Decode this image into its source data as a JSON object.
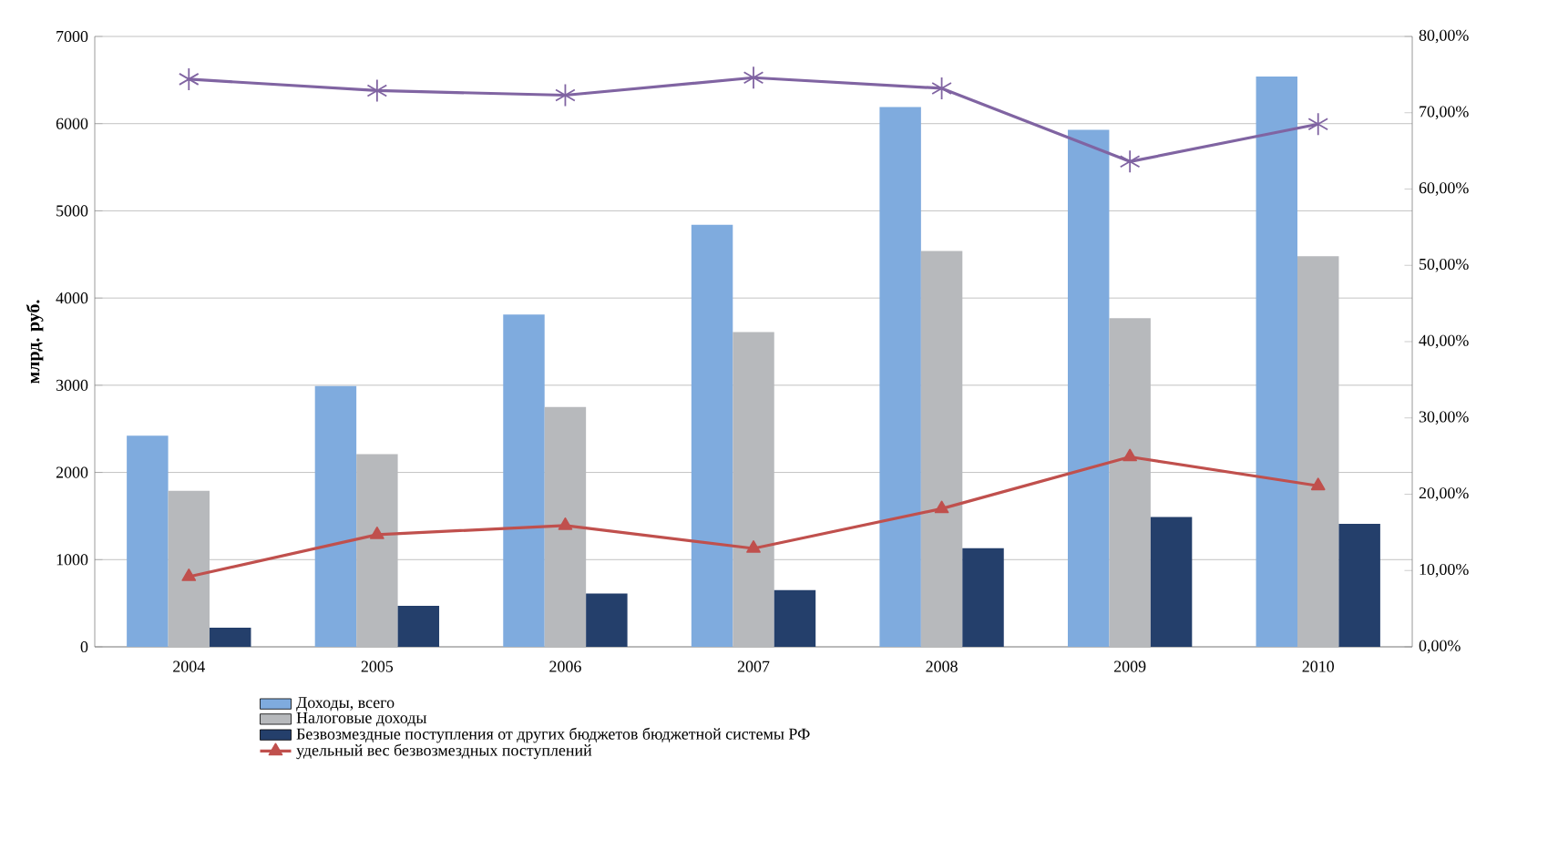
{
  "chart_data": {
    "type": "bar",
    "ylabel": "млрд. руб.",
    "categories": [
      "2004",
      "2005",
      "2006",
      "2007",
      "2008",
      "2009",
      "2010"
    ],
    "series": [
      {
        "name": "Доходы, всего",
        "color": "#7fabde",
        "values": [
          2420,
          2990,
          3810,
          4840,
          6190,
          5930,
          6540
        ]
      },
      {
        "name": "Налоговые доходы",
        "color": "#b7b9bc",
        "values": [
          1790,
          2210,
          2750,
          3610,
          4540,
          3770,
          4480
        ]
      },
      {
        "name": "Безвозмездные поступления от других бюджетов бюджетной системы РФ",
        "color": "#243f6b",
        "values": [
          220,
          470,
          610,
          650,
          1130,
          1490,
          1410
        ]
      },
      {
        "name": "удельный вес безвозмездных поступлений",
        "type": "line",
        "axis": "y2",
        "marker": "triangle",
        "color": "#c0504d",
        "values": [
          9.2,
          14.7,
          15.9,
          12.9,
          18.1,
          24.9,
          21.1
        ]
      },
      {
        "type": "line",
        "axis": "y2",
        "marker": "cross",
        "color": "#8064a2",
        "values": [
          74.4,
          72.9,
          72.3,
          74.6,
          73.2,
          63.6,
          68.5
        ]
      }
    ],
    "ylim": [
      0,
      7000
    ],
    "yticks": [
      0,
      1000,
      2000,
      3000,
      4000,
      5000,
      6000,
      7000
    ],
    "y2lim": [
      0,
      80
    ],
    "y2ticks": [
      {
        "value": 0,
        "label": "0,00%"
      },
      {
        "value": 10,
        "label": "10,00%"
      },
      {
        "value": 20,
        "label": "20,00%"
      },
      {
        "value": 30,
        "label": "30,00%"
      },
      {
        "value": 40,
        "label": "40,00%"
      },
      {
        "value": 50,
        "label": "50,00%"
      },
      {
        "value": 60,
        "label": "60,00%"
      },
      {
        "value": 70,
        "label": "70,00%"
      },
      {
        "value": 80,
        "label": "80,00%"
      }
    ],
    "grid": "y",
    "legend": "bottom"
  }
}
